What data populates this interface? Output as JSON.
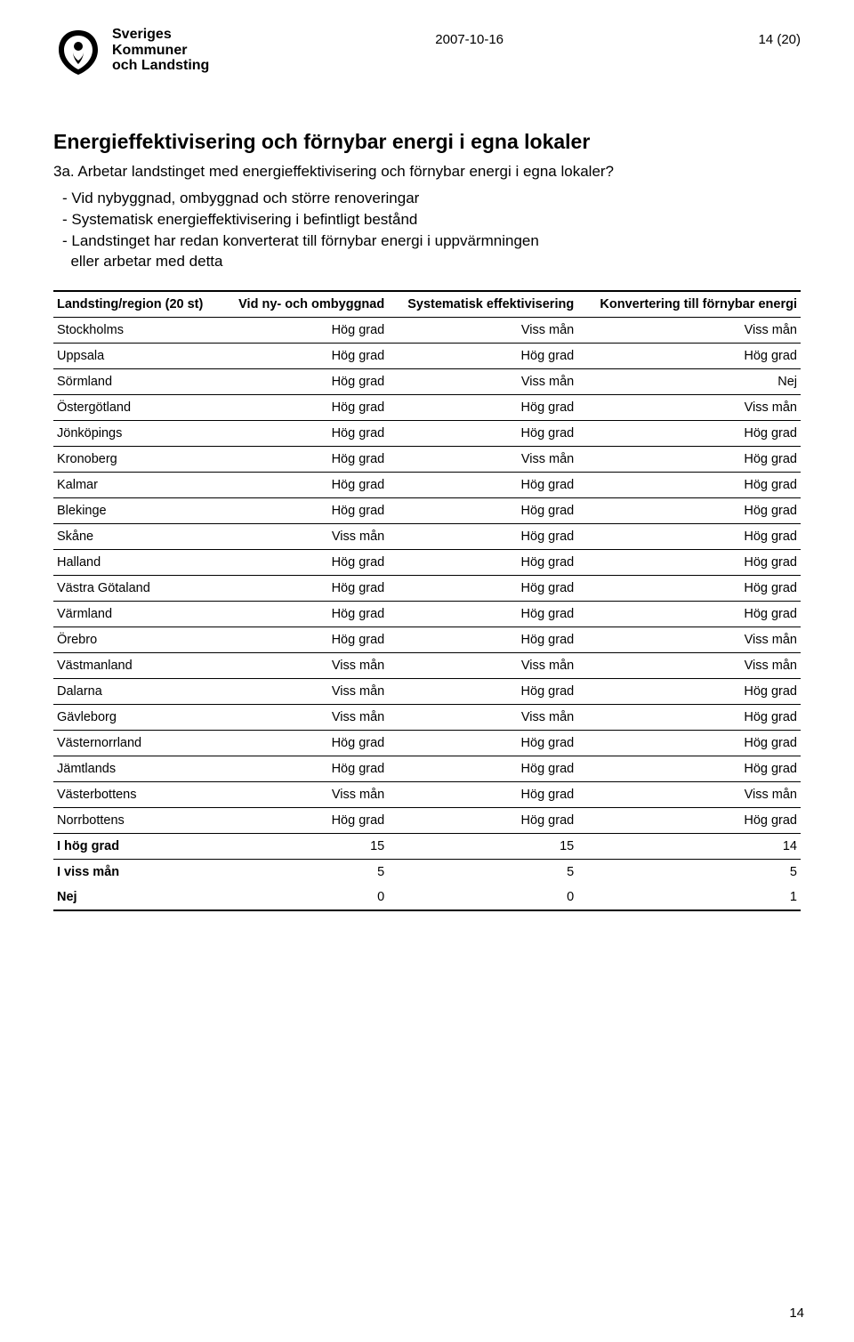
{
  "header": {
    "org_line1": "Sveriges",
    "org_line2": "Kommuner",
    "org_line3": "och Landsting",
    "date": "2007-10-16",
    "page_label": "14 (20)"
  },
  "title": "Energieffektivisering och förnybar energi i egna lokaler",
  "subtitle": "3a. Arbetar landstinget med energieffektivisering och förnybar energi i egna lokaler?",
  "bullets": [
    "- Vid nybyggnad, ombyggnad och större renoveringar",
    "- Systematisk energieffektivisering i befintligt bestånd",
    "- Landstinget har redan konverterat till förnybar energi i uppvärmningen",
    "  eller arbetar med detta"
  ],
  "table": {
    "columns": [
      "Landsting/region (20 st)",
      "Vid ny- och ombyggnad",
      "Systematisk effektivisering",
      "Konvertering till förnybar energi"
    ],
    "col_align": [
      "left",
      "right",
      "right",
      "right"
    ],
    "rows": [
      [
        "Stockholms",
        "Hög grad",
        "Viss mån",
        "Viss mån"
      ],
      [
        "Uppsala",
        "Hög grad",
        "Hög grad",
        "Hög grad"
      ],
      [
        "Sörmland",
        "Hög grad",
        "Viss mån",
        "Nej"
      ],
      [
        "Östergötland",
        "Hög grad",
        "Hög grad",
        "Viss mån"
      ],
      [
        "Jönköpings",
        "Hög grad",
        "Hög grad",
        "Hög grad"
      ],
      [
        "Kronoberg",
        "Hög grad",
        "Viss mån",
        "Hög grad"
      ],
      [
        "Kalmar",
        "Hög grad",
        "Hög grad",
        "Hög grad"
      ],
      [
        "Blekinge",
        "Hög grad",
        "Hög grad",
        "Hög grad"
      ],
      [
        "Skåne",
        "Viss mån",
        "Hög grad",
        "Hög grad"
      ],
      [
        "Halland",
        "Hög grad",
        "Hög grad",
        "Hög grad"
      ],
      [
        "Västra Götaland",
        "Hög grad",
        "Hög grad",
        "Hög grad"
      ],
      [
        "Värmland",
        "Hög grad",
        "Hög grad",
        "Hög grad"
      ],
      [
        "Örebro",
        "Hög grad",
        "Hög grad",
        "Viss mån"
      ],
      [
        "Västmanland",
        "Viss mån",
        "Viss mån",
        "Viss mån"
      ],
      [
        "Dalarna",
        "Viss mån",
        "Hög grad",
        "Hög grad"
      ],
      [
        "Gävleborg",
        "Viss mån",
        "Viss mån",
        "Hög grad"
      ],
      [
        "Västernorrland",
        "Hög grad",
        "Hög grad",
        "Hög grad"
      ],
      [
        "Jämtlands",
        "Hög grad",
        "Hög grad",
        "Hög grad"
      ],
      [
        "Västerbottens",
        "Viss mån",
        "Hög grad",
        "Viss mån"
      ],
      [
        "Norrbottens",
        "Hög grad",
        "Hög grad",
        "Hög grad"
      ]
    ],
    "summary": [
      [
        "I hög grad",
        "15",
        "15",
        "14"
      ],
      [
        "I viss mån",
        "5",
        "5",
        "5"
      ],
      [
        "Nej",
        "0",
        "0",
        "1"
      ]
    ]
  },
  "footer_page_num": "14",
  "colors": {
    "text": "#000000",
    "background": "#ffffff",
    "rule": "#000000"
  },
  "fonts": {
    "family": "Arial, Helvetica, sans-serif",
    "title_size_pt": 17,
    "body_size_pt": 12,
    "table_size_pt": 11
  }
}
